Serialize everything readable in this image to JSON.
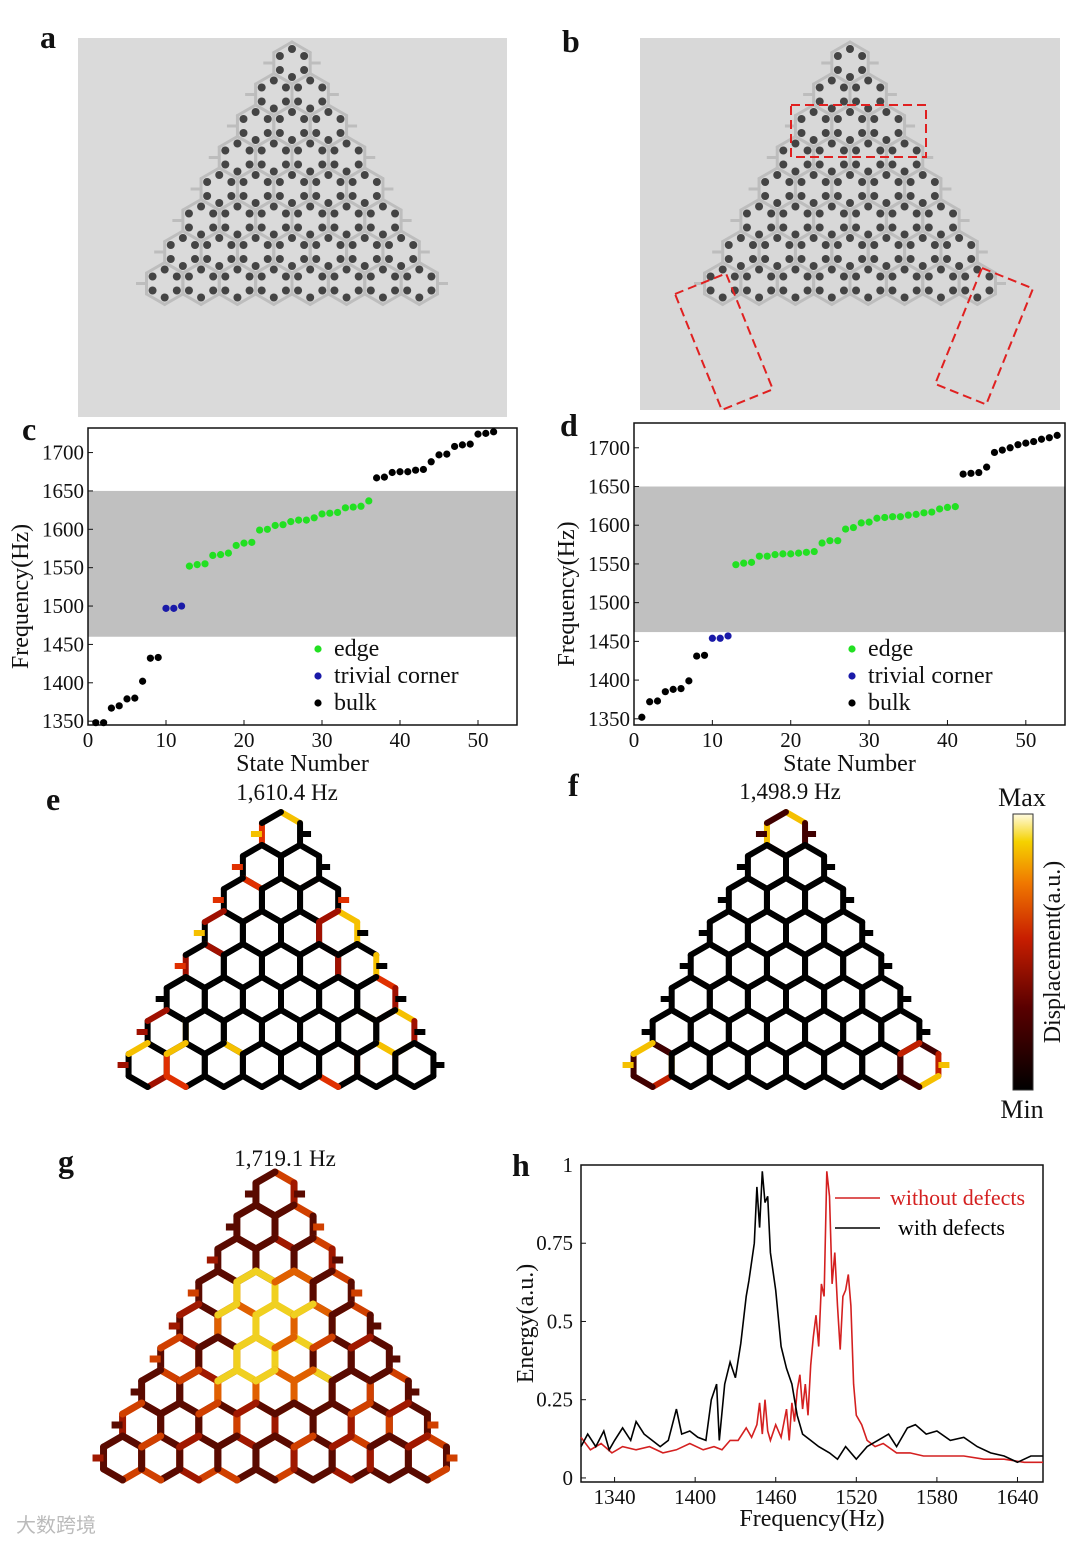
{
  "panel_labels": {
    "a": "a",
    "b": "b",
    "c": "c",
    "d": "d",
    "e": "e",
    "f": "f",
    "g": "g",
    "h": "h"
  },
  "mode_titles": {
    "e": "1,610.4 Hz",
    "f": "1,498.9 Hz",
    "g": "1,719.1 Hz"
  },
  "colorbar": {
    "max": "Max",
    "min": "Min",
    "label": "Displacement(a.u.)",
    "colors": [
      "#000000",
      "#5a0000",
      "#c81e00",
      "#f07800",
      "#f5d200",
      "#fffbe0"
    ]
  },
  "watermark": "大数跨境",
  "colors": {
    "edge": "#22e022",
    "corner": "#1a1aa8",
    "bulk": "#000000",
    "band": "#c0c0c0",
    "without": "#d42020",
    "with": "#000000"
  },
  "chart_data": [
    {
      "id": "c",
      "type": "scatter",
      "xlabel": "State Number",
      "ylabel": "Frequency(Hz)",
      "xlim": [
        0,
        55
      ],
      "ylim": [
        1345,
        1732
      ],
      "xticks": [
        0,
        10,
        20,
        30,
        40,
        50
      ],
      "yticks": [
        1350,
        1400,
        1450,
        1500,
        1550,
        1600,
        1650,
        1700
      ],
      "band": [
        1460,
        1650
      ],
      "legend": [
        "edge",
        "trivial corner",
        "bulk"
      ],
      "series": [
        {
          "name": "bulk",
          "x": [
            1,
            2,
            3,
            4,
            5,
            6,
            7,
            8,
            9,
            37,
            38,
            39,
            40,
            41,
            42,
            43,
            44,
            45,
            46,
            47,
            48,
            49,
            50,
            51,
            52
          ],
          "y": [
            1348,
            1348,
            1367,
            1370,
            1379,
            1380,
            1402,
            1432,
            1433,
            1667,
            1668,
            1674,
            1675,
            1675,
            1677,
            1678,
            1688,
            1697,
            1698,
            1708,
            1710,
            1711,
            1724,
            1725,
            1727
          ]
        },
        {
          "name": "trivial corner",
          "x": [
            10,
            11,
            12
          ],
          "y": [
            1497,
            1497,
            1500
          ]
        },
        {
          "name": "edge",
          "x": [
            13,
            14,
            15,
            16,
            17,
            18,
            19,
            20,
            21,
            22,
            23,
            24,
            25,
            26,
            27,
            28,
            29,
            30,
            31,
            32,
            33,
            34,
            35,
            36
          ],
          "y": [
            1552,
            1554,
            1555,
            1566,
            1567,
            1569,
            1579,
            1582,
            1583,
            1599,
            1600,
            1605,
            1606,
            1610,
            1612,
            1612,
            1615,
            1620,
            1621,
            1622,
            1628,
            1629,
            1630,
            1637
          ]
        }
      ]
    },
    {
      "id": "d",
      "type": "scatter",
      "xlabel": "State Number",
      "ylabel": "Frequency(Hz)",
      "xlim": [
        0,
        55
      ],
      "ylim": [
        1342,
        1732
      ],
      "xticks": [
        0,
        10,
        20,
        30,
        40,
        50
      ],
      "yticks": [
        1350,
        1400,
        1450,
        1500,
        1550,
        1600,
        1650,
        1700
      ],
      "band": [
        1462,
        1650
      ],
      "legend": [
        "edge",
        "trivial corner",
        "bulk"
      ],
      "series": [
        {
          "name": "bulk",
          "x": [
            1,
            2,
            3,
            4,
            5,
            6,
            7,
            8,
            9,
            42,
            43,
            44,
            45,
            46,
            47,
            48,
            49,
            50,
            51,
            52,
            53,
            54
          ],
          "y": [
            1352,
            1372,
            1373,
            1385,
            1388,
            1389,
            1399,
            1431,
            1432,
            1666,
            1667,
            1668,
            1675,
            1694,
            1697,
            1700,
            1704,
            1706,
            1708,
            1711,
            1713,
            1716
          ]
        },
        {
          "name": "trivial corner",
          "x": [
            10,
            11,
            12
          ],
          "y": [
            1454,
            1454,
            1457
          ]
        },
        {
          "name": "edge",
          "x": [
            13,
            14,
            15,
            16,
            17,
            18,
            19,
            20,
            21,
            22,
            23,
            24,
            25,
            26,
            27,
            28,
            29,
            30,
            31,
            32,
            33,
            34,
            35,
            36,
            37,
            38,
            39,
            40,
            41
          ],
          "y": [
            1549,
            1551,
            1552,
            1560,
            1560,
            1562,
            1563,
            1563,
            1564,
            1565,
            1566,
            1577,
            1580,
            1580,
            1595,
            1597,
            1603,
            1604,
            1609,
            1610,
            1611,
            1611,
            1613,
            1614,
            1616,
            1617,
            1621,
            1623,
            1624
          ]
        }
      ]
    },
    {
      "id": "h",
      "type": "line",
      "xlabel": "Frequency(Hz)",
      "ylabel": "Energy(a.u.)",
      "xlim": [
        1315,
        1659
      ],
      "ylim": [
        -0.013,
        1.0
      ],
      "xticks": [
        1340,
        1400,
        1460,
        1520,
        1580,
        1640
      ],
      "yticks": [
        0,
        0.25,
        0.5,
        0.75,
        1
      ],
      "ytick_labels": [
        "0",
        "0.25",
        "0.5",
        "0.75",
        "1"
      ],
      "legend_position": "top-right",
      "series": [
        {
          "name": "without defects",
          "color": "#d42020",
          "x": [
            1315,
            1322,
            1330,
            1338,
            1346,
            1356,
            1366,
            1376,
            1386,
            1396,
            1406,
            1414,
            1420,
            1426,
            1432,
            1438,
            1442,
            1446,
            1448,
            1450,
            1452,
            1454,
            1456,
            1460,
            1464,
            1468,
            1470,
            1472,
            1474,
            1476,
            1478,
            1480,
            1482,
            1484,
            1486,
            1488,
            1490,
            1492,
            1494,
            1496,
            1498,
            1500,
            1502,
            1504,
            1506,
            1508,
            1510,
            1512,
            1514,
            1516,
            1518,
            1520,
            1524,
            1528,
            1534,
            1540,
            1550,
            1560,
            1570,
            1585,
            1600,
            1615,
            1630,
            1645,
            1659
          ],
          "y": [
            0.13,
            0.09,
            0.11,
            0.08,
            0.1,
            0.09,
            0.1,
            0.08,
            0.09,
            0.11,
            0.09,
            0.1,
            0.09,
            0.12,
            0.12,
            0.16,
            0.13,
            0.17,
            0.24,
            0.14,
            0.25,
            0.15,
            0.12,
            0.17,
            0.13,
            0.22,
            0.12,
            0.24,
            0.18,
            0.28,
            0.33,
            0.22,
            0.3,
            0.2,
            0.36,
            0.45,
            0.52,
            0.42,
            0.62,
            0.58,
            0.98,
            0.9,
            0.62,
            0.72,
            0.55,
            0.41,
            0.58,
            0.6,
            0.65,
            0.55,
            0.3,
            0.2,
            0.17,
            0.12,
            0.1,
            0.11,
            0.08,
            0.08,
            0.07,
            0.07,
            0.07,
            0.06,
            0.06,
            0.05,
            0.05
          ]
        },
        {
          "name": "with defects",
          "color": "#000000",
          "x": [
            1315,
            1320,
            1326,
            1332,
            1336,
            1340,
            1346,
            1352,
            1356,
            1362,
            1368,
            1374,
            1380,
            1386,
            1390,
            1396,
            1402,
            1408,
            1412,
            1416,
            1418,
            1422,
            1426,
            1430,
            1434,
            1438,
            1440,
            1444,
            1446,
            1448,
            1450,
            1452,
            1454,
            1456,
            1460,
            1464,
            1468,
            1472,
            1476,
            1480,
            1486,
            1492,
            1500,
            1506,
            1512,
            1520,
            1528,
            1536,
            1544,
            1550,
            1558,
            1564,
            1572,
            1580,
            1590,
            1600,
            1610,
            1620,
            1630,
            1640,
            1650,
            1659
          ],
          "y": [
            0.1,
            0.14,
            0.1,
            0.15,
            0.09,
            0.12,
            0.16,
            0.12,
            0.18,
            0.14,
            0.12,
            0.1,
            0.12,
            0.22,
            0.14,
            0.15,
            0.13,
            0.12,
            0.25,
            0.3,
            0.12,
            0.3,
            0.37,
            0.32,
            0.43,
            0.58,
            0.63,
            0.75,
            0.93,
            0.8,
            0.98,
            0.88,
            0.9,
            0.72,
            0.6,
            0.42,
            0.35,
            0.3,
            0.2,
            0.14,
            0.12,
            0.1,
            0.08,
            0.06,
            0.1,
            0.06,
            0.1,
            0.12,
            0.14,
            0.1,
            0.16,
            0.17,
            0.14,
            0.15,
            0.12,
            0.13,
            0.1,
            0.08,
            0.07,
            0.05,
            0.07,
            0.07
          ]
        }
      ]
    }
  ]
}
